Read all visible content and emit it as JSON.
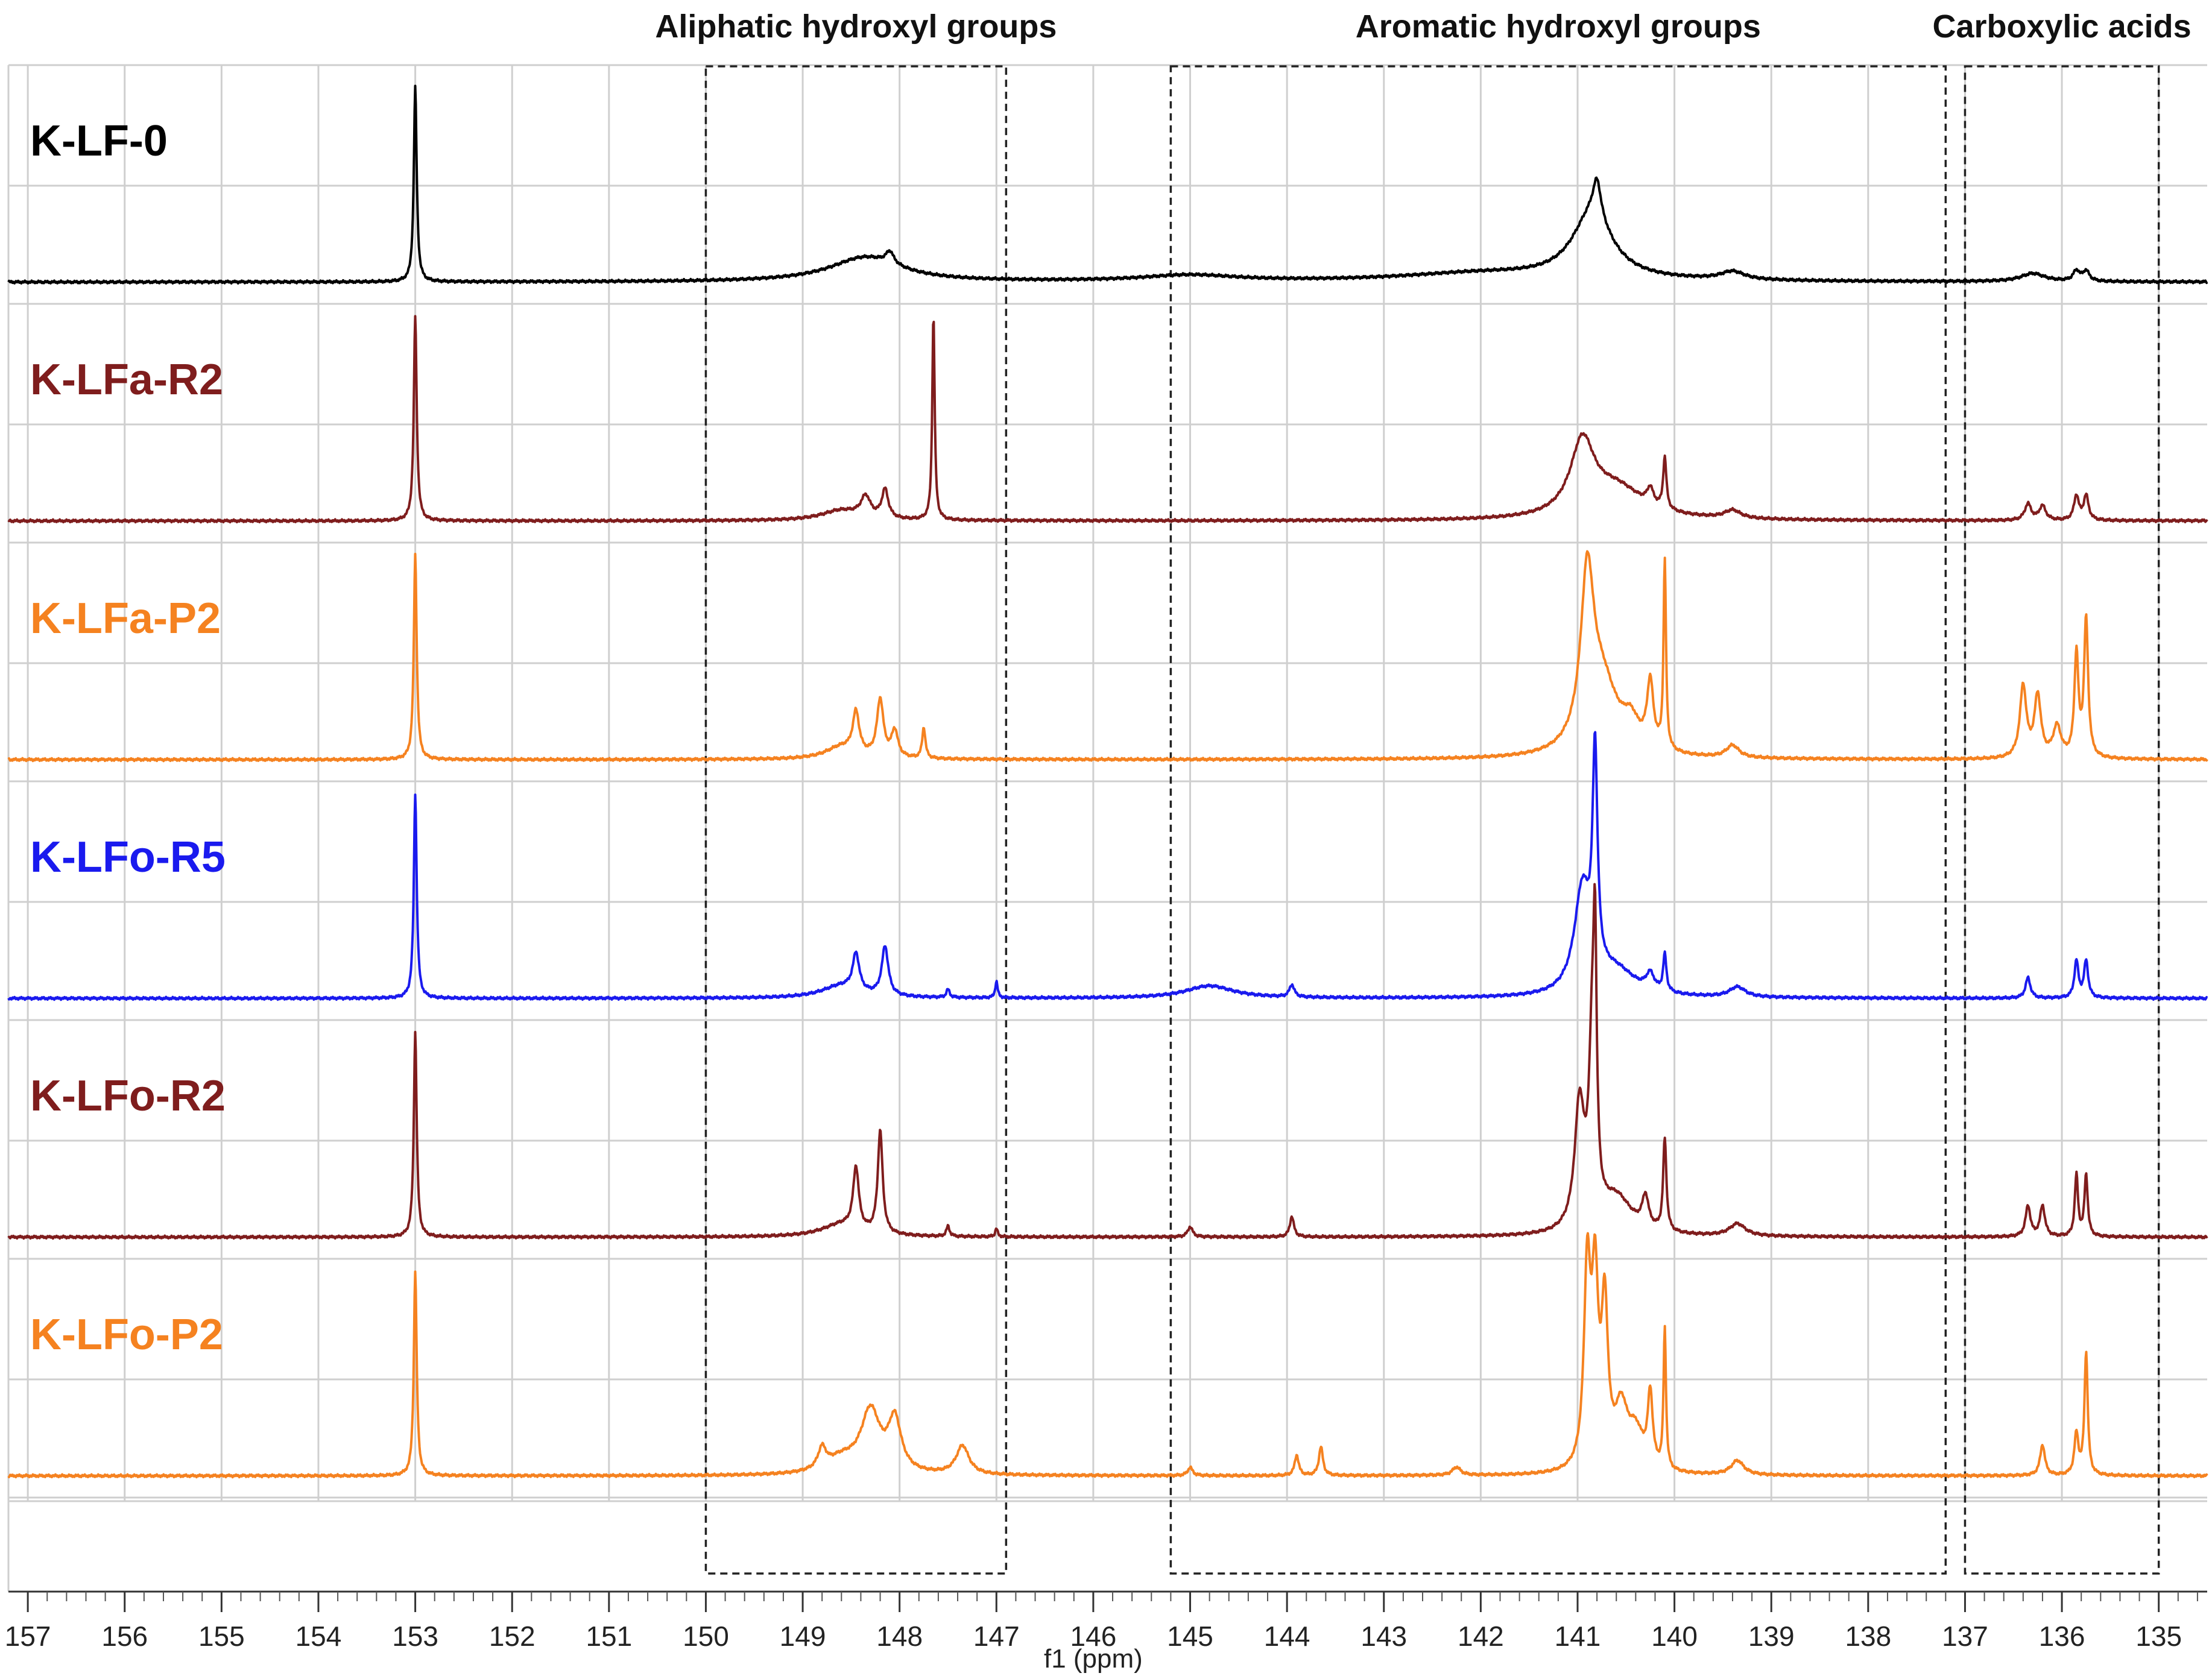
{
  "chart_data": {
    "type": "line",
    "title": "",
    "xlabel": "f1 (ppm)",
    "ylabel": "",
    "x_reversed": true,
    "xlim": [
      157.2,
      134.5
    ],
    "x_ticks": [
      157,
      156,
      155,
      154,
      153,
      152,
      151,
      150,
      149,
      148,
      147,
      146,
      145,
      144,
      143,
      142,
      141,
      140,
      139,
      138,
      137,
      136,
      135
    ],
    "grid": true,
    "legend": "none",
    "regions": [
      {
        "name": "Aliphatic hydroxyl groups",
        "x_start": 150.0,
        "x_end": 146.9
      },
      {
        "name": "Aromatic hydroxyl groups",
        "x_start": 145.2,
        "x_end": 137.2
      },
      {
        "name": "Carboxylic acids",
        "x_start": 137.0,
        "x_end": 135.0
      }
    ],
    "series": [
      {
        "name": "K-LF-0",
        "color": "#000000",
        "peaks": [
          {
            "x": 153.0,
            "height": 0.95,
            "width": 0.018
          },
          {
            "x": 148.35,
            "height": 0.12,
            "width": 0.45
          },
          {
            "x": 148.1,
            "height": 0.06,
            "width": 0.05
          },
          {
            "x": 145.0,
            "height": 0.03,
            "width": 0.6
          },
          {
            "x": 142.0,
            "height": 0.04,
            "width": 1.0
          },
          {
            "x": 140.85,
            "height": 0.32,
            "width": 0.25
          },
          {
            "x": 140.8,
            "height": 0.18,
            "width": 0.05
          },
          {
            "x": 139.4,
            "height": 0.04,
            "width": 0.15
          },
          {
            "x": 136.3,
            "height": 0.04,
            "width": 0.15
          },
          {
            "x": 135.85,
            "height": 0.05,
            "width": 0.04
          },
          {
            "x": 135.75,
            "height": 0.05,
            "width": 0.04
          }
        ]
      },
      {
        "name": "K-LFa-R2",
        "color": "#7f1d1d",
        "peaks": [
          {
            "x": 153.0,
            "height": 1.0,
            "width": 0.018
          },
          {
            "x": 148.35,
            "height": 0.1,
            "width": 0.06
          },
          {
            "x": 148.15,
            "height": 0.14,
            "width": 0.04
          },
          {
            "x": 147.65,
            "height": 1.0,
            "width": 0.015
          },
          {
            "x": 148.6,
            "height": 0.05,
            "width": 0.25
          },
          {
            "x": 140.95,
            "height": 0.35,
            "width": 0.15
          },
          {
            "x": 140.6,
            "height": 0.15,
            "width": 0.35
          },
          {
            "x": 140.25,
            "height": 0.08,
            "width": 0.04
          },
          {
            "x": 140.1,
            "height": 0.25,
            "width": 0.02
          },
          {
            "x": 139.4,
            "height": 0.04,
            "width": 0.1
          },
          {
            "x": 136.35,
            "height": 0.08,
            "width": 0.04
          },
          {
            "x": 136.2,
            "height": 0.07,
            "width": 0.04
          },
          {
            "x": 135.85,
            "height": 0.12,
            "width": 0.03
          },
          {
            "x": 135.75,
            "height": 0.12,
            "width": 0.03
          }
        ]
      },
      {
        "name": "K-LFa-P2",
        "color": "#f58220",
        "peaks": [
          {
            "x": 153.0,
            "height": 1.0,
            "width": 0.018
          },
          {
            "x": 148.45,
            "height": 0.2,
            "width": 0.04
          },
          {
            "x": 148.2,
            "height": 0.28,
            "width": 0.04
          },
          {
            "x": 148.05,
            "height": 0.13,
            "width": 0.04
          },
          {
            "x": 147.75,
            "height": 0.15,
            "width": 0.02
          },
          {
            "x": 148.6,
            "height": 0.06,
            "width": 0.2
          },
          {
            "x": 140.9,
            "height": 0.78,
            "width": 0.08
          },
          {
            "x": 140.75,
            "height": 0.35,
            "width": 0.2
          },
          {
            "x": 140.45,
            "height": 0.12,
            "width": 0.1
          },
          {
            "x": 140.25,
            "height": 0.32,
            "width": 0.04
          },
          {
            "x": 140.1,
            "height": 0.92,
            "width": 0.015
          },
          {
            "x": 139.4,
            "height": 0.06,
            "width": 0.08
          },
          {
            "x": 136.4,
            "height": 0.35,
            "width": 0.04
          },
          {
            "x": 136.25,
            "height": 0.3,
            "width": 0.04
          },
          {
            "x": 136.05,
            "height": 0.15,
            "width": 0.05
          },
          {
            "x": 135.85,
            "height": 0.5,
            "width": 0.025
          },
          {
            "x": 135.75,
            "height": 0.67,
            "width": 0.025
          }
        ]
      },
      {
        "name": "K-LFo-R5",
        "color": "#1a1aee",
        "peaks": [
          {
            "x": 153.0,
            "height": 1.0,
            "width": 0.018
          },
          {
            "x": 148.45,
            "height": 0.18,
            "width": 0.04
          },
          {
            "x": 148.15,
            "height": 0.24,
            "width": 0.04
          },
          {
            "x": 148.6,
            "height": 0.06,
            "width": 0.25
          },
          {
            "x": 147.5,
            "height": 0.04,
            "width": 0.02
          },
          {
            "x": 147.0,
            "height": 0.08,
            "width": 0.015
          },
          {
            "x": 144.8,
            "height": 0.06,
            "width": 0.3
          },
          {
            "x": 143.95,
            "height": 0.06,
            "width": 0.03
          },
          {
            "x": 140.95,
            "height": 0.5,
            "width": 0.1
          },
          {
            "x": 140.82,
            "height": 1.05,
            "width": 0.03
          },
          {
            "x": 140.6,
            "height": 0.12,
            "width": 0.25
          },
          {
            "x": 140.25,
            "height": 0.08,
            "width": 0.05
          },
          {
            "x": 140.1,
            "height": 0.18,
            "width": 0.02
          },
          {
            "x": 139.35,
            "height": 0.05,
            "width": 0.1
          },
          {
            "x": 136.35,
            "height": 0.1,
            "width": 0.03
          },
          {
            "x": 135.85,
            "height": 0.18,
            "width": 0.025
          },
          {
            "x": 135.75,
            "height": 0.18,
            "width": 0.025
          }
        ]
      },
      {
        "name": "K-LFo-R2",
        "color": "#7f1d1d",
        "peaks": [
          {
            "x": 153.0,
            "height": 1.0,
            "width": 0.018
          },
          {
            "x": 148.45,
            "height": 0.3,
            "width": 0.035
          },
          {
            "x": 148.2,
            "height": 0.5,
            "width": 0.03
          },
          {
            "x": 148.6,
            "height": 0.06,
            "width": 0.25
          },
          {
            "x": 147.5,
            "height": 0.05,
            "width": 0.02
          },
          {
            "x": 147.0,
            "height": 0.04,
            "width": 0.015
          },
          {
            "x": 145.0,
            "height": 0.05,
            "width": 0.03
          },
          {
            "x": 143.95,
            "height": 0.1,
            "width": 0.025
          },
          {
            "x": 140.98,
            "height": 0.6,
            "width": 0.06
          },
          {
            "x": 140.85,
            "height": 0.8,
            "width": 0.04
          },
          {
            "x": 140.82,
            "height": 1.05,
            "width": 0.02
          },
          {
            "x": 140.6,
            "height": 0.18,
            "width": 0.2
          },
          {
            "x": 140.3,
            "height": 0.15,
            "width": 0.04
          },
          {
            "x": 140.1,
            "height": 0.45,
            "width": 0.02
          },
          {
            "x": 139.35,
            "height": 0.06,
            "width": 0.1
          },
          {
            "x": 136.35,
            "height": 0.15,
            "width": 0.03
          },
          {
            "x": 136.2,
            "height": 0.15,
            "width": 0.03
          },
          {
            "x": 135.85,
            "height": 0.3,
            "width": 0.02
          },
          {
            "x": 135.75,
            "height": 0.3,
            "width": 0.02
          }
        ]
      },
      {
        "name": "K-LFo-P2",
        "color": "#f58220",
        "peaks": [
          {
            "x": 153.0,
            "height": 1.0,
            "width": 0.018
          },
          {
            "x": 148.3,
            "height": 0.3,
            "width": 0.12
          },
          {
            "x": 148.05,
            "height": 0.25,
            "width": 0.08
          },
          {
            "x": 148.8,
            "height": 0.1,
            "width": 0.05
          },
          {
            "x": 148.6,
            "height": 0.07,
            "width": 0.2
          },
          {
            "x": 147.35,
            "height": 0.14,
            "width": 0.08
          },
          {
            "x": 145.0,
            "height": 0.04,
            "width": 0.03
          },
          {
            "x": 143.9,
            "height": 0.1,
            "width": 0.025
          },
          {
            "x": 143.65,
            "height": 0.14,
            "width": 0.025
          },
          {
            "x": 142.25,
            "height": 0.04,
            "width": 0.05
          },
          {
            "x": 140.9,
            "height": 0.95,
            "width": 0.04
          },
          {
            "x": 140.82,
            "height": 0.85,
            "width": 0.04
          },
          {
            "x": 140.72,
            "height": 0.75,
            "width": 0.04
          },
          {
            "x": 140.55,
            "height": 0.28,
            "width": 0.08
          },
          {
            "x": 140.4,
            "height": 0.18,
            "width": 0.1
          },
          {
            "x": 140.25,
            "height": 0.35,
            "width": 0.03
          },
          {
            "x": 140.1,
            "height": 0.68,
            "width": 0.015
          },
          {
            "x": 139.35,
            "height": 0.07,
            "width": 0.08
          },
          {
            "x": 136.2,
            "height": 0.15,
            "width": 0.03
          },
          {
            "x": 135.85,
            "height": 0.2,
            "width": 0.025
          },
          {
            "x": 135.75,
            "height": 0.6,
            "width": 0.02
          }
        ]
      }
    ]
  }
}
